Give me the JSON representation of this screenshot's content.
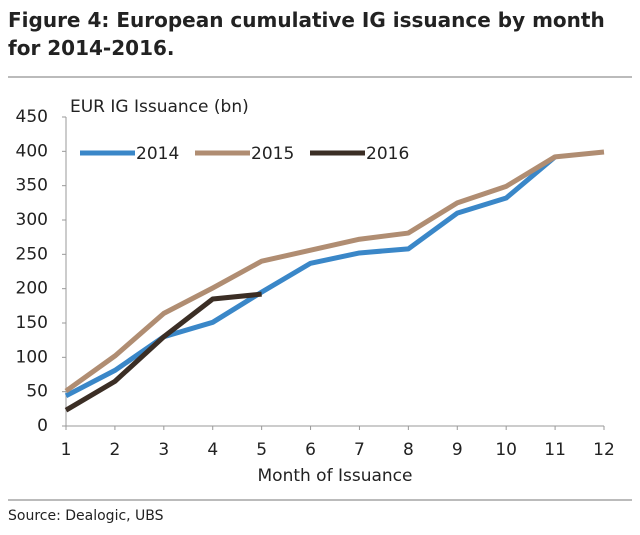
{
  "chart_data": {
    "type": "line",
    "title": "Figure 4: European cumulative IG issuance by month for 2014-2016.",
    "y_label": "EUR IG Issuance (bn)",
    "x_label": "Month of Issuance",
    "source": "Source:  Dealogic, UBS",
    "x": [
      1,
      2,
      3,
      4,
      5,
      6,
      7,
      8,
      9,
      10,
      11,
      12
    ],
    "xlim": [
      1,
      12
    ],
    "xticks": [
      1,
      2,
      3,
      4,
      5,
      6,
      7,
      8,
      9,
      10,
      11,
      12
    ],
    "ylim": [
      0,
      450
    ],
    "yticks": [
      0,
      50,
      100,
      150,
      200,
      250,
      300,
      350,
      400,
      450
    ],
    "legend": "top-left",
    "series": [
      {
        "name": "2014",
        "color": "#3a87c8",
        "values": [
          44,
          81,
          130,
          151,
          195,
          237,
          252,
          258,
          310,
          332,
          392,
          null
        ]
      },
      {
        "name": "2015",
        "color": "#b08d72",
        "values": [
          51,
          102,
          164,
          201,
          240,
          256,
          272,
          281,
          325,
          349,
          392,
          399
        ]
      },
      {
        "name": "2016",
        "color": "#3b2e25",
        "values": [
          23,
          65,
          130,
          185,
          192,
          null,
          null,
          null,
          null,
          null,
          null,
          null
        ]
      }
    ]
  }
}
